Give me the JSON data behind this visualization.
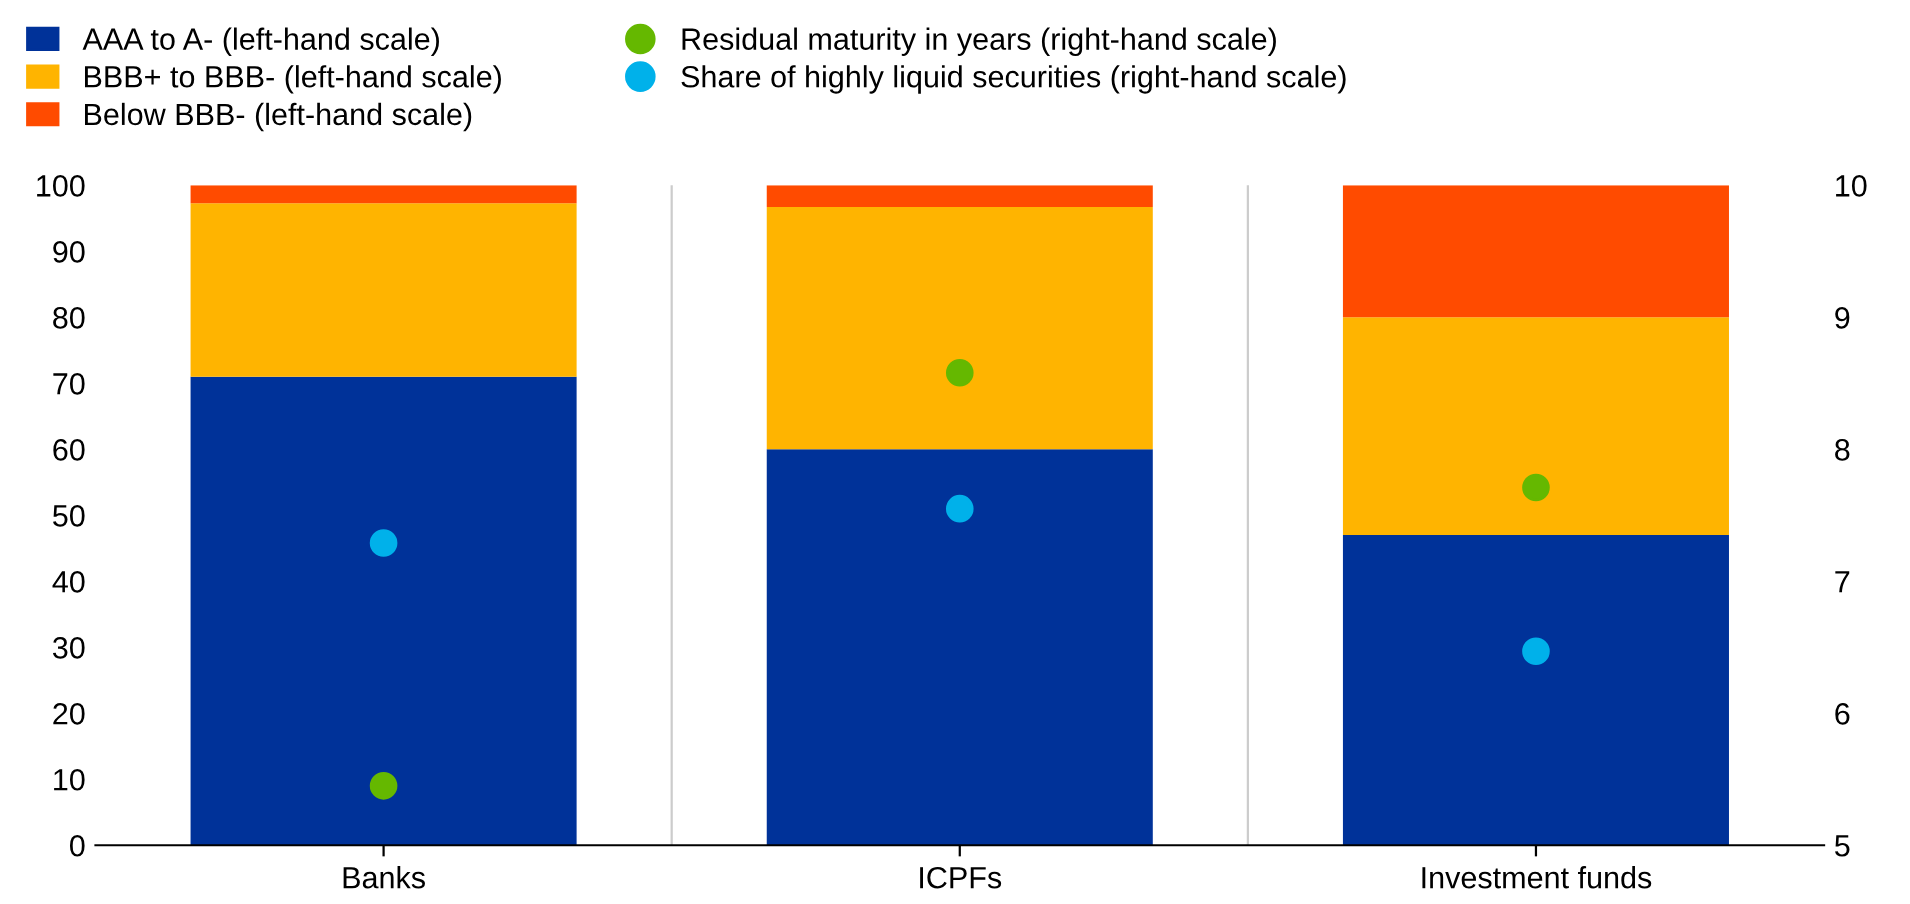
{
  "chart_data": {
    "type": "bar",
    "stacked": true,
    "categories": [
      "Banks",
      "ICPFs",
      "Investment funds"
    ],
    "series": [
      {
        "name": "AAA to A- (left-hand scale)",
        "color": "#003299",
        "values": [
          71,
          60,
          47
        ]
      },
      {
        "name": "BBB+ to BBB- (left-hand scale)",
        "color": "#ffb400",
        "values": [
          26.3,
          36.7,
          33
        ]
      },
      {
        "name": "Below BBB- (left-hand scale)",
        "color": "#ff4b00",
        "values": [
          2.7,
          3.3,
          20
        ]
      },
      {
        "name": "Residual maturity in years (right-hand scale)",
        "type": "scatter",
        "axis": "y2",
        "color": "#65b800",
        "values": [
          5.45,
          8.58,
          7.71
        ]
      },
      {
        "name": "Share of highly liquid securities (right-hand scale)",
        "type": "scatter",
        "axis": "y2",
        "color": "#00b1ea",
        "values": [
          7.29,
          7.55,
          6.47
        ]
      }
    ],
    "ylim": [
      0,
      100
    ],
    "yticks": [
      0,
      10,
      20,
      30,
      40,
      50,
      60,
      70,
      80,
      90,
      100
    ],
    "y2lim": [
      5,
      10
    ],
    "y2ticks": [
      5,
      6,
      7,
      8,
      9,
      10
    ],
    "grid": "x",
    "legend": "top",
    "marker": "circle"
  }
}
